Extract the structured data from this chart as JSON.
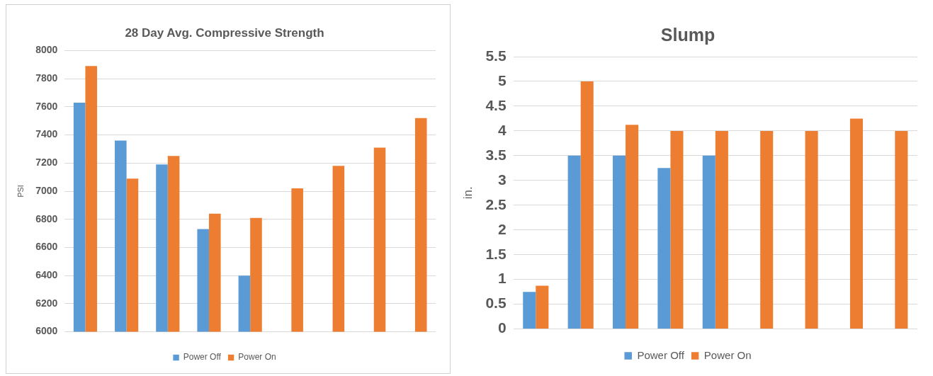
{
  "chart_data": [
    {
      "type": "bar",
      "title": "28 Day Avg. Compressive Strength",
      "ylabel": "PSI",
      "categories": [
        null,
        null,
        null,
        null,
        null,
        null,
        null,
        null,
        null
      ],
      "series": [
        {
          "name": "Power Off",
          "color": "#5b9bd5",
          "values": [
            7630,
            7360,
            7190,
            6730,
            6400,
            null,
            null,
            null,
            null
          ]
        },
        {
          "name": "Power On",
          "color": "#ed7d31",
          "values": [
            7890,
            7090,
            7250,
            6840,
            6810,
            7020,
            7180,
            7310,
            7520
          ]
        }
      ],
      "ylim": [
        6000,
        8000
      ],
      "yticks": [
        6000,
        6200,
        6400,
        6600,
        6800,
        7000,
        7200,
        7400,
        7600,
        7800,
        8000
      ],
      "grid": "y",
      "legend": "bottom"
    },
    {
      "type": "bar",
      "title": "Slump",
      "ylabel": "in.",
      "categories": [
        null,
        null,
        null,
        null,
        null,
        null,
        null,
        null,
        null
      ],
      "series": [
        {
          "name": "Power Off",
          "color": "#5b9bd5",
          "values": [
            0.75,
            3.5,
            3.5,
            3.25,
            3.5,
            null,
            null,
            null,
            null
          ]
        },
        {
          "name": "Power On",
          "color": "#ed7d31",
          "values": [
            0.875,
            5,
            4.125,
            4,
            4,
            4,
            4,
            4.25,
            4
          ]
        }
      ],
      "ylim": [
        0,
        5.5
      ],
      "yticks": [
        0,
        0.5,
        1,
        1.5,
        2,
        2.5,
        3,
        3.5,
        4,
        4.5,
        5,
        5.5
      ],
      "grid": "y",
      "legend": "bottom"
    }
  ]
}
